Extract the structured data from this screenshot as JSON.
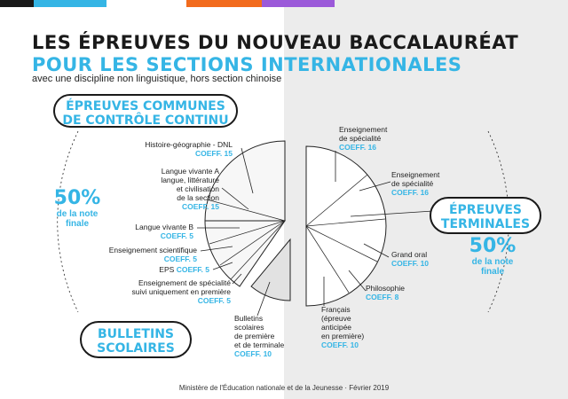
{
  "title_line1": "LES ÉPREUVES DU NOUVEAU BACCALAURÉAT",
  "title_line2": "POUR LES SECTIONS INTERNATIONALES",
  "subtitle": "avec une discipline non linguistique, hors section chinoise",
  "colors": {
    "accent": "#35b5e5",
    "dark": "#1a1a1a",
    "orange": "#f26b1d",
    "purple": "#9b59d9",
    "bg_right": "#ececec"
  },
  "pill_cc": {
    "line1": "ÉPREUVES COMMUNES",
    "line2": "DE CONTRÔLE CONTINU"
  },
  "pill_bulletins": {
    "line1": "BULLETINS",
    "line2": "SCOLAIRES"
  },
  "pill_terminales": {
    "line1": "ÉPREUVES",
    "line2": "TERMINALES"
  },
  "pct_left": {
    "value": "50%",
    "line1": "de la note",
    "line2": "finale"
  },
  "pct_right": {
    "value": "50%",
    "line1": "de la note",
    "line2": "finale"
  },
  "left_items": [
    {
      "lines": [
        "Histoire-géographie - DNL"
      ],
      "coef": "COEFF. 15"
    },
    {
      "lines": [
        "Langue vivante A",
        "langue, littérature",
        "et civilisation",
        "de la section"
      ],
      "coef": "COEFF. 15"
    },
    {
      "lines": [
        "Langue vivante B"
      ],
      "coef": "COEFF. 5"
    },
    {
      "lines": [
        "Enseignement scientifique"
      ],
      "coef": "COEFF. 5"
    },
    {
      "lines": [
        "EPS"
      ],
      "coef": "COEFF. 5"
    },
    {
      "lines": [
        "Enseignement de spécialité",
        "suivi uniquement en première"
      ],
      "coef": "COEFF. 5"
    }
  ],
  "bulletins_item": {
    "lines": [
      "Bulletins",
      "scolaires",
      "de première",
      "et de terminale"
    ],
    "coef": "COEFF. 10"
  },
  "right_items": [
    {
      "lines": [
        "Enseignement",
        "de spécialité"
      ],
      "coef": "COEFF. 16"
    },
    {
      "lines": [
        "Enseignement",
        "de spécialité"
      ],
      "coef": "COEFF. 16"
    },
    {
      "lines": [
        "Grand oral"
      ],
      "coef": "COEFF. 10"
    },
    {
      "lines": [
        "Philosophie"
      ],
      "coef": "COEFF. 8"
    },
    {
      "lines": [
        "Français",
        "(épreuve",
        "anticipée",
        "en première)"
      ],
      "coef": "COEFF. 10"
    }
  ],
  "footer": "Ministère de l'Éducation nationale et de la Jeunesse · Février 2019"
}
